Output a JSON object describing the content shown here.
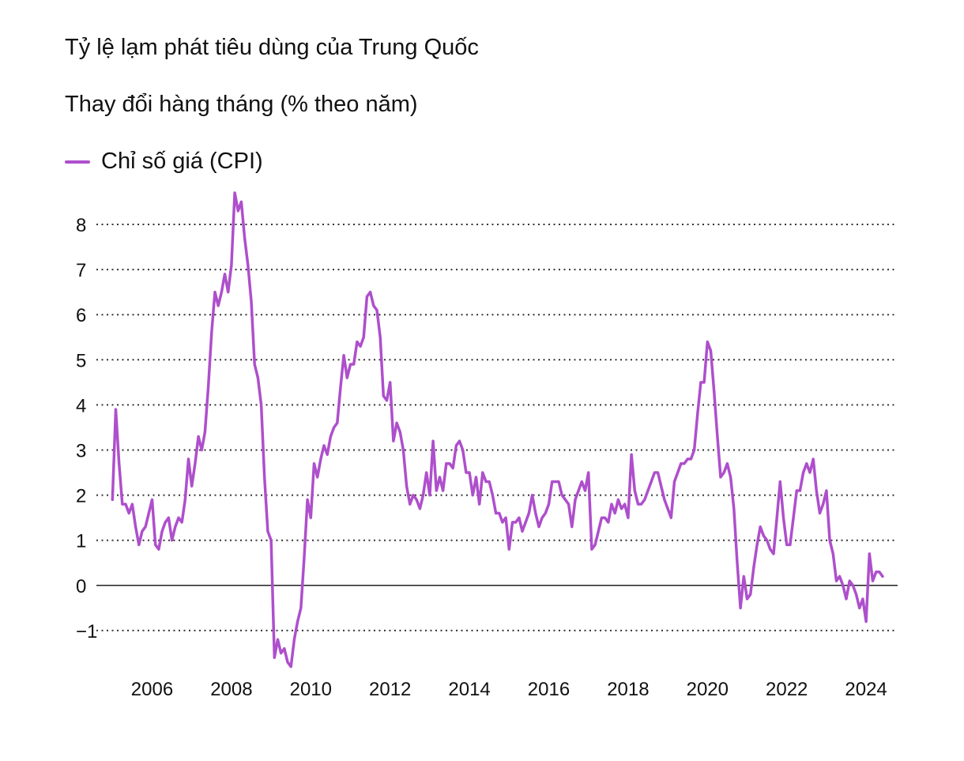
{
  "colors": {
    "series": "#ae4fcc",
    "grid": "#333333",
    "text": "#111111"
  },
  "chart_data": {
    "type": "line",
    "title": "Tỷ lệ lạm phát tiêu dùng của Trung Quốc",
    "subtitle": "Thay đổi hàng tháng (% theo năm)",
    "xlabel": "",
    "ylabel": "",
    "legend_position": "top-left",
    "grid": true,
    "xlim": [
      2004.6,
      2025.4
    ],
    "ylim": [
      -1.8,
      8.8
    ],
    "x_ticks": [
      2006,
      2008,
      2010,
      2012,
      2014,
      2016,
      2018,
      2020,
      2022,
      2024
    ],
    "x_tick_labels": [
      "2006",
      "2008",
      "2010",
      "2012",
      "2014",
      "2016",
      "2018",
      "2020",
      "2022",
      "2024"
    ],
    "y_ticks": [
      -1,
      0,
      1,
      2,
      3,
      4,
      5,
      6,
      7,
      8
    ],
    "y_tick_labels": [
      "−1",
      "0",
      "1",
      "2",
      "3",
      "4",
      "5",
      "6",
      "7",
      "8"
    ],
    "series": [
      {
        "name": "Chỉ số giá (CPI)",
        "color": "#ae4fcc",
        "start": "2005-01",
        "frequency": "monthly",
        "values": [
          1.9,
          3.9,
          2.7,
          1.8,
          1.8,
          1.6,
          1.8,
          1.3,
          0.9,
          1.2,
          1.3,
          1.6,
          1.9,
          0.9,
          0.8,
          1.2,
          1.4,
          1.5,
          1.0,
          1.3,
          1.5,
          1.4,
          1.9,
          2.8,
          2.2,
          2.7,
          3.3,
          3.0,
          3.4,
          4.4,
          5.6,
          6.5,
          6.2,
          6.5,
          6.9,
          6.5,
          7.1,
          8.7,
          8.3,
          8.5,
          7.7,
          7.1,
          6.3,
          4.9,
          4.6,
          4.0,
          2.4,
          1.2,
          1.0,
          -1.6,
          -1.2,
          -1.5,
          -1.4,
          -1.7,
          -1.8,
          -1.2,
          -0.8,
          -0.5,
          0.6,
          1.9,
          1.5,
          2.7,
          2.4,
          2.8,
          3.1,
          2.9,
          3.3,
          3.5,
          3.6,
          4.4,
          5.1,
          4.6,
          4.9,
          4.9,
          5.4,
          5.3,
          5.5,
          6.4,
          6.5,
          6.2,
          6.1,
          5.5,
          4.2,
          4.1,
          4.5,
          3.2,
          3.6,
          3.4,
          3.0,
          2.2,
          1.8,
          2.0,
          1.9,
          1.7,
          2.0,
          2.5,
          2.0,
          3.2,
          2.1,
          2.4,
          2.1,
          2.7,
          2.7,
          2.6,
          3.1,
          3.2,
          3.0,
          2.5,
          2.5,
          2.0,
          2.4,
          1.8,
          2.5,
          2.3,
          2.3,
          2.0,
          1.6,
          1.6,
          1.4,
          1.5,
          0.8,
          1.4,
          1.4,
          1.5,
          1.2,
          1.4,
          1.6,
          2.0,
          1.6,
          1.3,
          1.5,
          1.6,
          1.8,
          2.3,
          2.3,
          2.3,
          2.0,
          1.9,
          1.8,
          1.3,
          1.9,
          2.1,
          2.3,
          2.1,
          2.5,
          0.8,
          0.9,
          1.2,
          1.5,
          1.5,
          1.4,
          1.8,
          1.6,
          1.9,
          1.7,
          1.8,
          1.5,
          2.9,
          2.1,
          1.8,
          1.8,
          1.9,
          2.1,
          2.3,
          2.5,
          2.5,
          2.2,
          1.9,
          1.7,
          1.5,
          2.3,
          2.5,
          2.7,
          2.7,
          2.8,
          2.8,
          3.0,
          3.8,
          4.5,
          4.5,
          5.4,
          5.2,
          4.3,
          3.3,
          2.4,
          2.5,
          2.7,
          2.4,
          1.7,
          0.5,
          -0.5,
          0.2,
          -0.3,
          -0.2,
          0.4,
          0.9,
          1.3,
          1.1,
          1.0,
          0.8,
          0.7,
          1.5,
          2.3,
          1.5,
          0.9,
          0.9,
          1.5,
          2.1,
          2.1,
          2.5,
          2.7,
          2.5,
          2.8,
          2.1,
          1.6,
          1.8,
          2.1,
          1.0,
          0.7,
          0.1,
          0.2,
          0.0,
          -0.3,
          0.1,
          0.0,
          -0.2,
          -0.5,
          -0.3,
          -0.8,
          0.7,
          0.1,
          0.3,
          0.3,
          0.2
        ]
      }
    ]
  }
}
